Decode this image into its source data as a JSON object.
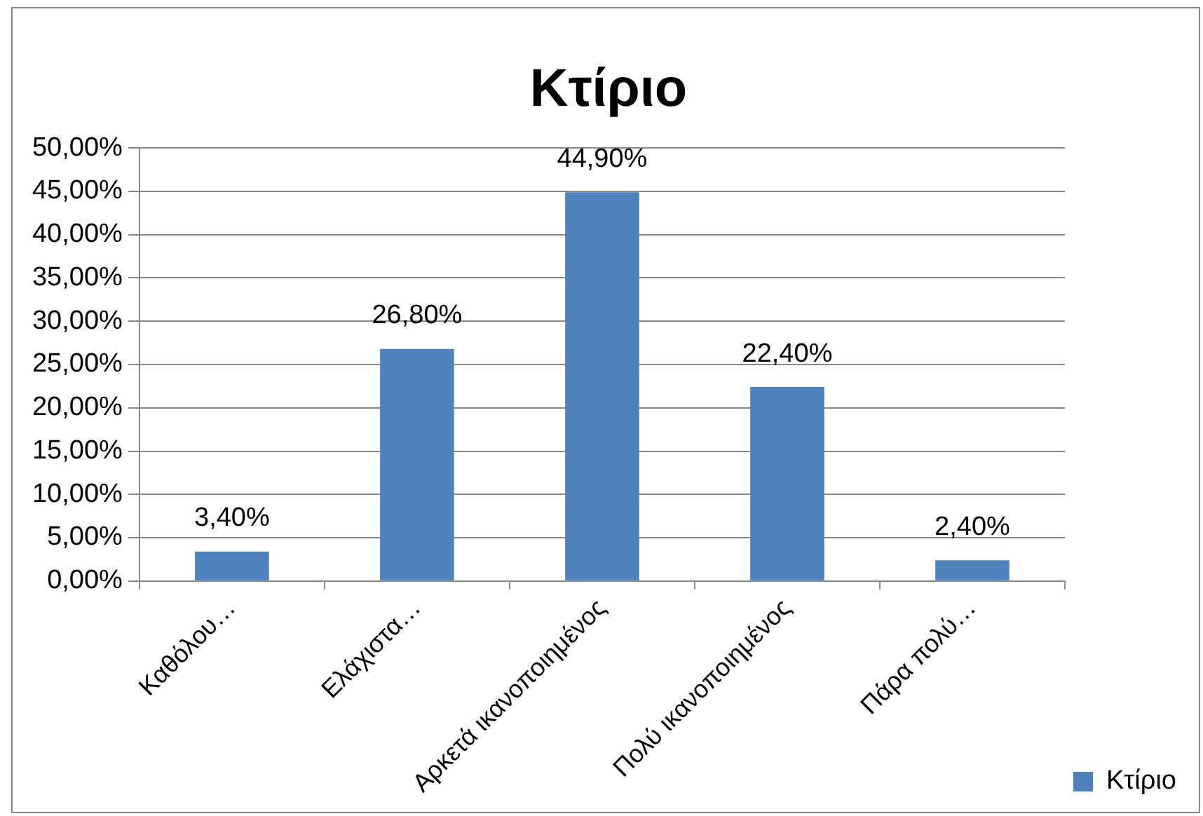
{
  "chart_data": {
    "type": "bar",
    "title": "Κτίριο",
    "categories": [
      "Καθόλου…",
      "Ελάχιστα…",
      "Αρκετά ικανοποιημένος",
      "Πολύ ικανοποιημένος",
      "Πάρα πολύ…"
    ],
    "series": [
      {
        "name": "Κτίριο",
        "color": "#4f81bd",
        "values": [
          3.4,
          26.8,
          44.9,
          22.4,
          2.4
        ],
        "value_labels": [
          "3,40%",
          "26,80%",
          "44,90%",
          "22,40%",
          "2,40%"
        ]
      }
    ],
    "ylim": [
      0,
      50
    ],
    "yticks": [
      {
        "value": 0,
        "label": "0,00%"
      },
      {
        "value": 5,
        "label": "5,00%"
      },
      {
        "value": 10,
        "label": "10,00%"
      },
      {
        "value": 15,
        "label": "15,00%"
      },
      {
        "value": 20,
        "label": "20,00%"
      },
      {
        "value": 25,
        "label": "25,00%"
      },
      {
        "value": 30,
        "label": "30,00%"
      },
      {
        "value": 35,
        "label": "35,00%"
      },
      {
        "value": 40,
        "label": "40,00%"
      },
      {
        "value": 45,
        "label": "45,00%"
      },
      {
        "value": 50,
        "label": "50,00%"
      }
    ],
    "grid": "y",
    "legend": "right"
  }
}
